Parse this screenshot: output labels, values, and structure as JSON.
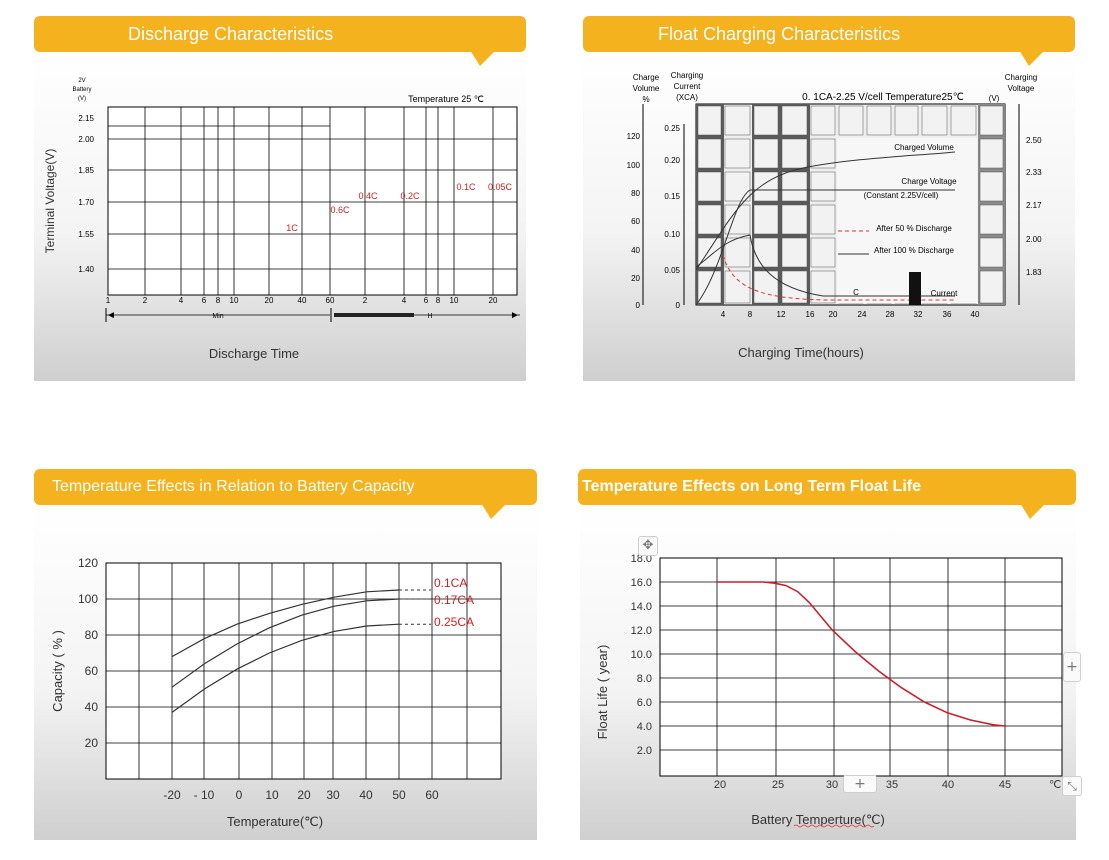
{
  "panels": {
    "discharge": {
      "title": "Discharge Characteristics"
    },
    "float_charging": {
      "title": "Float Charging Characteristics"
    },
    "temp_capacity": {
      "title": "Temperature Effects in Relation to Battery Capacity"
    },
    "temp_life": {
      "title": "Temperature Effects on Long Term Float Life"
    }
  },
  "ui": {
    "plus_icon": "plus-icon",
    "move_icon": "move-icon",
    "resize_icon": "resize-icon",
    "plus_label": "+"
  },
  "chart_data": [
    {
      "type": "line",
      "title": "Discharge Characteristics",
      "xlabel": "Discharge Time",
      "ylabel": "Terminal Voltage(V)",
      "unit_note": [
        "2V",
        "Battery",
        "(V)"
      ],
      "annotation": "Temperature 25 ℃",
      "y_ticks": [
        "2.15",
        "2.00",
        "1.85",
        "1.70",
        "1.55",
        "1.40"
      ],
      "x_ticks_min": [
        "1",
        "2",
        "4",
        "6",
        "8",
        "10",
        "20",
        "40",
        "60"
      ],
      "x_ticks_hour": [
        "2",
        "4",
        "6",
        "8",
        "10",
        "20"
      ],
      "x_unit_min": "Min",
      "x_unit_hour": "H",
      "series": [
        {
          "name": "1C"
        },
        {
          "name": "0.6C"
        },
        {
          "name": "0.4C"
        },
        {
          "name": "0.2C"
        },
        {
          "name": "0.1C"
        },
        {
          "name": "0.05C"
        }
      ],
      "grid": true
    },
    {
      "type": "line",
      "title": "Float Charging Characteristics",
      "xlabel": "Charging Time(hours)",
      "ylabel_left1": "Charge Volume %",
      "ylabel_left2": "Charging Current (XCA)",
      "ylabel_right": "Charging Voltage (V)",
      "annotation": "0. 1CA-2.25 V/cell  Temperature25℃",
      "x": [
        4,
        8,
        12,
        16,
        20,
        24,
        28,
        32,
        36,
        40
      ],
      "y_volume_ticks": [
        "120",
        "100",
        "80",
        "60",
        "40",
        "20",
        "0"
      ],
      "y_current_ticks": [
        "0.25",
        "0.20",
        "0.15",
        "0.10",
        "0.05",
        "0"
      ],
      "y_voltage_ticks": [
        "2.50",
        "2.33",
        "2.17",
        "2.00",
        "1.83"
      ],
      "series": [
        {
          "name": "Charged Volume"
        },
        {
          "name": "Charge Voltage",
          "note": "(Constant 2.25V/cell)"
        },
        {
          "name": "After 50 % Discharge"
        },
        {
          "name": "After 100 % Discharge"
        },
        {
          "name": "Current",
          "prefix": "C"
        }
      ],
      "grid": true
    },
    {
      "type": "line",
      "title": "Temperature Effects in Relation to Battery Capacity",
      "xlabel": "Temperature(℃)",
      "ylabel": "Capacity ( % )",
      "x_ticks": [
        "-20",
        "- 10",
        "0",
        "10",
        "20",
        "30",
        "40",
        "50",
        "60"
      ],
      "y_ticks": [
        "120",
        "100",
        "80",
        "60",
        "40",
        "20"
      ],
      "xlim": [
        -20,
        60
      ],
      "ylim": [
        0,
        120
      ],
      "series": [
        {
          "name": "0.1CA",
          "x": [
            -20,
            -10,
            0,
            10,
            20,
            30,
            40,
            50
          ],
          "values": [
            68,
            78,
            86,
            92,
            97,
            101,
            104,
            105
          ]
        },
        {
          "name": "0.17CA",
          "x": [
            -20,
            -10,
            0,
            10,
            20,
            30,
            40,
            50
          ],
          "values": [
            51,
            64,
            75,
            84,
            91,
            96,
            99,
            100
          ]
        },
        {
          "name": "0.25CA",
          "x": [
            -20,
            -10,
            0,
            10,
            20,
            30,
            40,
            50
          ],
          "values": [
            37,
            50,
            61,
            70,
            77,
            82,
            85,
            86
          ]
        }
      ],
      "grid": true
    },
    {
      "type": "line",
      "title": "Temperature Effects on Long Term Float Life",
      "xlabel": "Battery  Temperture(℃)",
      "ylabel": "Float Life ( year)",
      "x_ticks": [
        "20",
        "25",
        "30",
        "35",
        "40",
        "45",
        "℃"
      ],
      "y_ticks": [
        "18.0",
        "16.0",
        "14.0",
        "12.0",
        "10.0",
        "8.0",
        "6.0",
        "4.0",
        "2.0"
      ],
      "xlim": [
        15,
        50
      ],
      "ylim": [
        0,
        18
      ],
      "series": [
        {
          "x": [
            20,
            22,
            24,
            25,
            26,
            27,
            28,
            30,
            32,
            34,
            36,
            38,
            40,
            42,
            44,
            45
          ],
          "values": [
            16.0,
            16.0,
            16.0,
            15.9,
            15.7,
            15.2,
            14.3,
            12.0,
            10.2,
            8.6,
            7.2,
            6.0,
            5.1,
            4.5,
            4.1,
            4.0
          ]
        }
      ],
      "grid": true
    }
  ]
}
